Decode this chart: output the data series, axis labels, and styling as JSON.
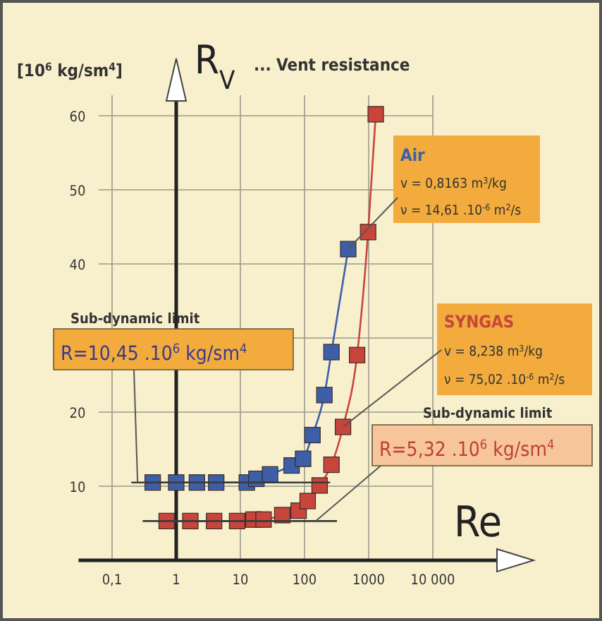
{
  "chart_data": {
    "type": "line",
    "title": "... Vent resistance",
    "ylabel": "R$_{V}$",
    "xlabel": "Re",
    "log": "x",
    "grid": true,
    "marker": "square",
    "xlim": [
      0.03,
      100000
    ],
    "xticks": [
      {
        "value": 0.1,
        "label": "0,1"
      },
      1,
      10,
      100,
      1000,
      {
        "value": 10000,
        "label": "10 000"
      }
    ],
    "ylim": [
      0,
      62
    ],
    "yticks": [
      10,
      20,
      {
        "value": 30,
        "label": null
      },
      40,
      50,
      60
    ],
    "series": [
      {
        "name": "Air",
        "color": "#3d5fa8",
        "x": [
          0.43,
          1,
          2.1,
          4.2,
          12.6,
          17.8,
          29,
          63,
          95,
          133,
          204,
          263,
          480
        ],
        "values": [
          10.5,
          10.5,
          10.5,
          10.5,
          10.5,
          11,
          11.6,
          12.8,
          13.7,
          16.9,
          22.3,
          28.1,
          42
        ]
      },
      {
        "name": "SYNGAS",
        "color": "#c8453c",
        "x": [
          0.71,
          1.66,
          3.9,
          8.9,
          16,
          23,
          45,
          81,
          112,
          172,
          263,
          398,
          660,
          980,
          1290
        ],
        "values": [
          5.3,
          5.3,
          5.3,
          5.3,
          5.5,
          5.5,
          6.1,
          6.7,
          8,
          10.1,
          12.9,
          18,
          27.7,
          44.3,
          60.2
        ]
      },
      {
        "color": "#3a3a3a",
        "marker": "none",
        "x": [
          0.2,
          250
        ],
        "values": [
          10.5,
          10.5
        ]
      },
      {
        "color": "#3a3a3a",
        "marker": "none",
        "x": [
          0.3,
          320
        ],
        "values": [
          5.3,
          5.3
        ]
      }
    ],
    "ref_lines": [
      {
        "axis": "x",
        "value": 1,
        "color": "#222222"
      }
    ],
    "annotations": [
      "[10$^{6}$ kg/sm$^{4}$]",
      "Sub-dynamic limit",
      {
        "text": "R=10,45 .10$^{6}$ kg/sm$^{4}$",
        "x": 0.25,
        "y": 10.5
      },
      "Sub-dynamic limit",
      {
        "text": "R=5,32 .10$^{6}$ kg/sm$^{4}$",
        "x": 150,
        "y": 5.3
      },
      {
        "text": "v = 0,8163  m$^{3}$/kg",
        "x": 480,
        "y": 42
      },
      "ν = 14,61 .10$^{-6}$ m$^{2}$/s",
      {
        "text": "v = 8,238  m$^{3}$/kg",
        "x": 398,
        "y": 18
      },
      "ν = 75,02 .10$^{-6}$ m$^{2}$/s"
    ]
  }
}
